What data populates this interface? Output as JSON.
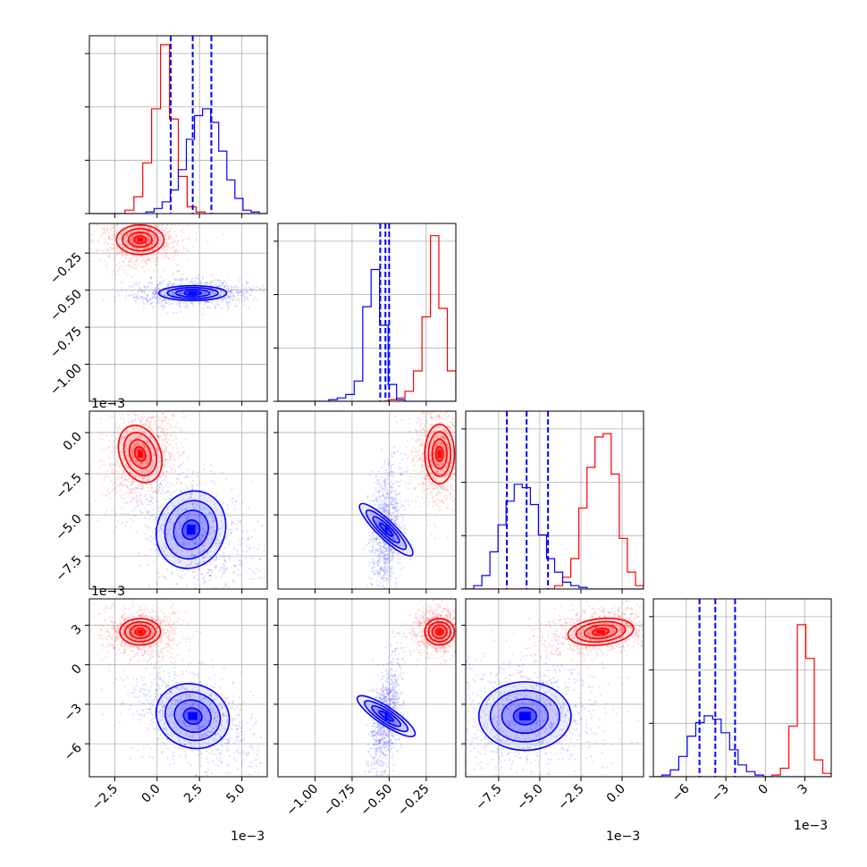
{
  "chart_data": {
    "type": "corner",
    "title": "",
    "grid": true,
    "colors": {
      "series_a": "#ff0000",
      "series_b": "#0000ff",
      "axis": "#000000",
      "grid": "#b0b0b0"
    },
    "dimensions": [
      {
        "index": 0,
        "range": [
          -4,
          6.5
        ],
        "ticks": [
          -2.5,
          0.0,
          2.5,
          5.0
        ],
        "tick_labels": [
          "−2.5",
          "0.0",
          "2.5",
          "5.0"
        ],
        "offset_label": "1e−3",
        "quantiles": [
          0.8,
          2.1,
          3.2
        ],
        "median_a": -1.0,
        "median_b": 2.1
      },
      {
        "index": 1,
        "range": [
          -1.25,
          -0.05
        ],
        "ticks": [
          -1.0,
          -0.75,
          -0.5,
          -0.25
        ],
        "tick_labels": [
          "−1.00",
          "−0.75",
          "−0.50",
          "−0.25"
        ],
        "offset_label": "",
        "quantiles": [
          -0.56,
          -0.525,
          -0.5
        ],
        "median_a": -0.16,
        "median_b": -0.52
      },
      {
        "index": 2,
        "range": [
          -9.5,
          1.3
        ],
        "ticks": [
          -7.5,
          -5.0,
          -2.5,
          0.0
        ],
        "tick_labels": [
          "−7.5",
          "−5.0",
          "−2.5",
          "0.0"
        ],
        "offset_label": "1e−3",
        "quantiles": [
          -7.0,
          -5.8,
          -4.5
        ],
        "median_a": -1.3,
        "median_b": -5.9
      },
      {
        "index": 3,
        "range": [
          -8.5,
          5.0
        ],
        "ticks": [
          -6,
          -3,
          0,
          3
        ],
        "tick_labels": [
          "−6",
          "−3",
          "0",
          "3"
        ],
        "offset_label": "1e−3",
        "quantiles": [
          -5.0,
          -3.8,
          -2.3
        ],
        "median_a": 2.5,
        "median_b": -3.9
      }
    ],
    "histograms": [
      {
        "dim": 0,
        "series_a": [
          0.0,
          0.0,
          0.0,
          0.0,
          0.02,
          0.1,
          0.3,
          0.62,
          1.0,
          0.56,
          0.22,
          0.04,
          0.01,
          0.0,
          0.0,
          0.0,
          0.0,
          0.0,
          0.0,
          0.0
        ],
        "series_b": [
          0.0,
          0.0,
          0.0,
          0.0,
          0.0,
          0.0,
          0.0,
          0.01,
          0.03,
          0.07,
          0.14,
          0.26,
          0.44,
          0.58,
          0.62,
          0.54,
          0.37,
          0.2,
          0.09,
          0.02,
          0.01,
          0.0
        ]
      },
      {
        "dim": 1,
        "series_a": [
          0.0,
          0.0,
          0.0,
          0.0,
          0.0,
          0.0,
          0.0,
          0.0,
          0.0,
          0.0,
          0.0,
          0.0,
          0.0,
          0.01,
          0.02,
          0.06,
          0.18,
          0.5,
          0.98,
          0.55,
          0.18
        ],
        "series_b": [
          0.0,
          0.0,
          0.0,
          0.0,
          0.0,
          0.0,
          0.01,
          0.02,
          0.04,
          0.12,
          0.56,
          0.78,
          0.45,
          0.1,
          0.01,
          0.0,
          0.0,
          0.0,
          0.0,
          0.0,
          0.0
        ]
      },
      {
        "dim": 2,
        "series_a": [
          0.0,
          0.0,
          0.0,
          0.0,
          0.0,
          0.0,
          0.0,
          0.0,
          0.0,
          0.0,
          0.0,
          0.02,
          0.07,
          0.18,
          0.48,
          0.72,
          0.9,
          0.92,
          0.68,
          0.3,
          0.1,
          0.02
        ],
        "series_b": [
          0.0,
          0.02,
          0.08,
          0.22,
          0.38,
          0.52,
          0.62,
          0.6,
          0.5,
          0.32,
          0.18,
          0.1,
          0.04,
          0.02,
          0.01,
          0.0,
          0.0,
          0.0,
          0.0,
          0.0,
          0.0,
          0.0
        ]
      },
      {
        "dim": 3,
        "series_a": [
          0.0,
          0.0,
          0.0,
          0.0,
          0.0,
          0.0,
          0.0,
          0.0,
          0.0,
          0.0,
          0.0,
          0.0,
          0.0,
          0.0,
          0.01,
          0.05,
          0.3,
          0.9,
          0.7,
          0.1,
          0.02
        ],
        "series_b": [
          0.0,
          0.01,
          0.04,
          0.12,
          0.24,
          0.32,
          0.36,
          0.34,
          0.26,
          0.16,
          0.07,
          0.03,
          0.01,
          0.0,
          0.0,
          0.0,
          0.0,
          0.0,
          0.0,
          0.0,
          0.0
        ]
      }
    ],
    "scatter_2d": [
      {
        "x_dim": 0,
        "y_dim": 1,
        "a": {
          "mx": -1.0,
          "my": -0.16,
          "sx": 0.7,
          "sy": 0.05,
          "rho": 0.0
        },
        "b": {
          "mx": 2.1,
          "my": -0.52,
          "sx": 1.0,
          "sy": 0.025,
          "rho": 0.0
        }
      },
      {
        "x_dim": 0,
        "y_dim": 2,
        "a": {
          "mx": -1.0,
          "my": -1.3,
          "sx": 0.6,
          "sy": 0.9,
          "rho": 0.3
        },
        "b": {
          "mx": 2.0,
          "my": -5.9,
          "sx": 1.0,
          "sy": 1.2,
          "rho": -0.4
        }
      },
      {
        "x_dim": 1,
        "y_dim": 2,
        "a": {
          "mx": -0.16,
          "my": -1.3,
          "sx": 0.05,
          "sy": 0.9,
          "rho": 0.0
        },
        "b": {
          "mx": -0.52,
          "my": -5.9,
          "sx": 0.03,
          "sy": 1.1,
          "rho": 0.3
        }
      },
      {
        "x_dim": 0,
        "y_dim": 3,
        "a": {
          "mx": -1.0,
          "my": 2.5,
          "sx": 0.6,
          "sy": 0.5,
          "rho": 0.0
        },
        "b": {
          "mx": 2.1,
          "my": -3.9,
          "sx": 1.1,
          "sy": 1.2,
          "rho": -0.5
        }
      },
      {
        "x_dim": 1,
        "y_dim": 3,
        "a": {
          "mx": -0.16,
          "my": 2.5,
          "sx": 0.05,
          "sy": 0.5,
          "rho": 0.0
        },
        "b": {
          "mx": -0.52,
          "my": -3.9,
          "sx": 0.03,
          "sy": 1.3,
          "rho": 0.5
        }
      },
      {
        "x_dim": 2,
        "y_dim": 3,
        "a": {
          "mx": -1.3,
          "my": 2.5,
          "sx": 1.0,
          "sy": 0.5,
          "rho": 0.3
        },
        "b": {
          "mx": -5.9,
          "my": -3.9,
          "sx": 1.4,
          "sy": 1.3,
          "rho": 0.0
        }
      }
    ]
  }
}
